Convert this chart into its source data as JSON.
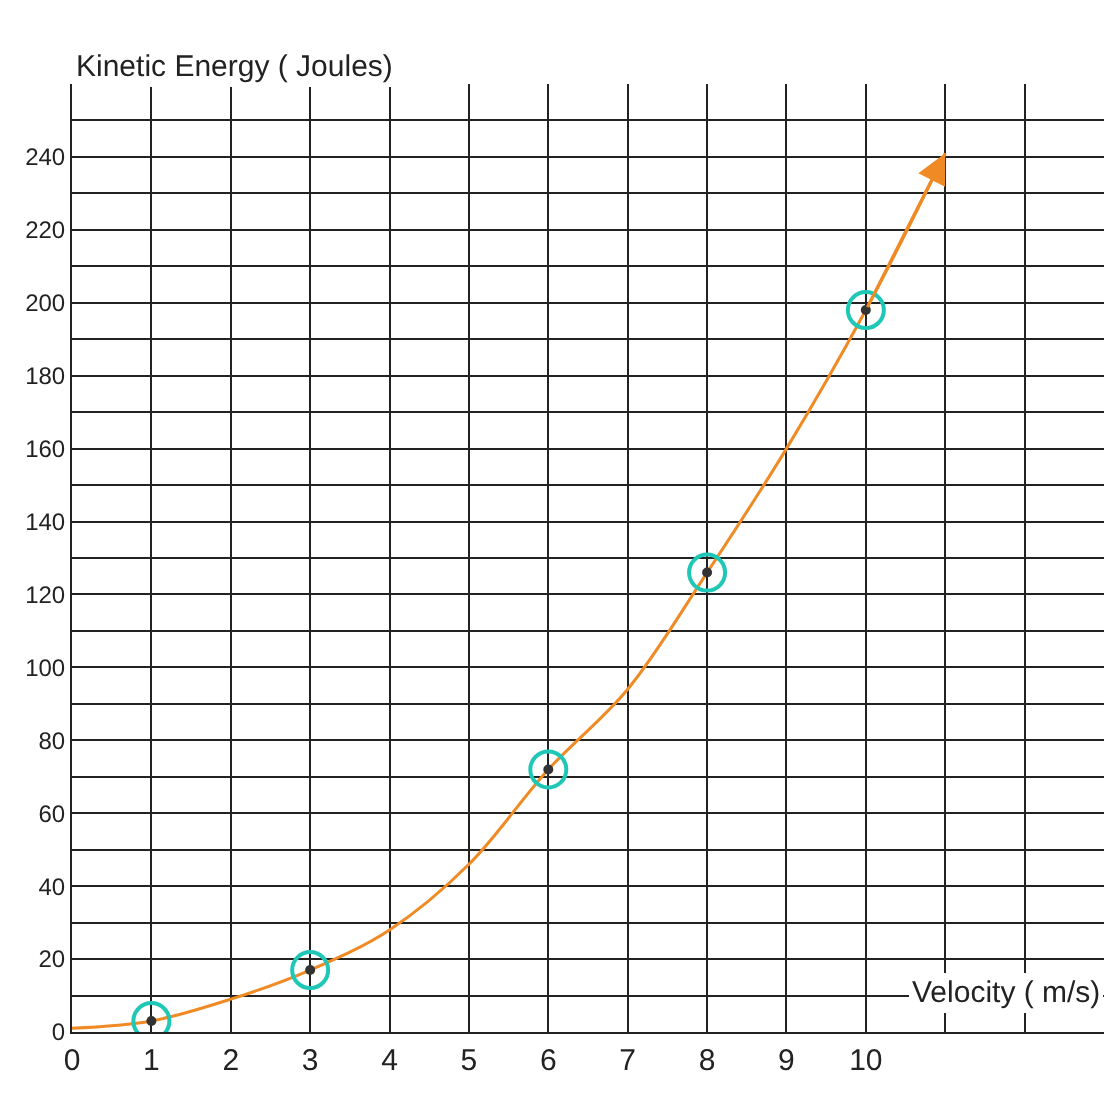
{
  "chart_data": {
    "type": "line",
    "xlabel": "Velocity ( m/s)",
    "ylabel": "Kinetic Energy ( Joules)",
    "xlim": [
      0,
      13
    ],
    "xticks": [
      0,
      1,
      2,
      3,
      4,
      5,
      6,
      7,
      8,
      9,
      10,
      {
        "value": 11,
        "label": null
      },
      {
        "value": 12,
        "label": null
      }
    ],
    "ylim": [
      0,
      260
    ],
    "yticks": [
      0,
      {
        "value": 10,
        "label": null
      },
      20,
      {
        "value": 30,
        "label": null
      },
      40,
      {
        "value": 50,
        "label": null
      },
      60,
      {
        "value": 70,
        "label": null
      },
      80,
      {
        "value": 90,
        "label": null
      },
      100,
      {
        "value": 110,
        "label": null
      },
      120,
      {
        "value": 130,
        "label": null
      },
      140,
      {
        "value": 150,
        "label": null
      },
      160,
      {
        "value": 170,
        "label": null
      },
      180,
      {
        "value": 190,
        "label": null
      },
      200,
      {
        "value": 210,
        "label": null
      },
      220,
      {
        "value": 230,
        "label": null
      },
      240,
      {
        "value": 250,
        "label": null
      }
    ],
    "grid": true,
    "legend": false,
    "series": [
      {
        "color": "#f08a24",
        "marker": "none",
        "x": [
          0,
          1,
          2,
          3,
          4,
          5,
          6,
          7,
          8,
          9,
          10,
          11
        ],
        "values": [
          1,
          3,
          9,
          17,
          28,
          46,
          72,
          94,
          126,
          160,
          198,
          241
        ]
      },
      {
        "type": "scatter",
        "color": "#1fc7b6",
        "marker": "circle",
        "x": [
          1,
          3,
          6,
          8,
          10
        ],
        "values": [
          3,
          17,
          72,
          126,
          198
        ]
      }
    ]
  }
}
